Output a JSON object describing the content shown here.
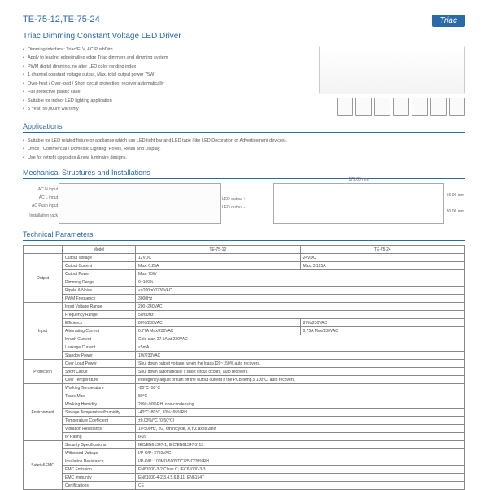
{
  "header": {
    "models": "TE-75-12,TE-75-24",
    "badge": "Triac",
    "title": "Triac Dimming Constant Voltage LED Driver"
  },
  "features": [
    "Dimming interface: Triac/ELV, AC PushDim",
    "Apply to leading edge/trailing edge Triac dimmers and dimming system",
    "PWM digital dimming, no alter LED color rending index",
    "1 channel constant voltage output, Max. total output power 75W",
    "Over-heat / Over-load / Short circuit protection, recover automatically",
    "Full protective plastic case",
    "Suitable for indoor LED lighting application",
    "5 Year, 50,000hr warranty"
  ],
  "sections": {
    "apps": "Applications",
    "mech": "Mechanical Structures and Installations",
    "tech": "Technical Parameters"
  },
  "applications": [
    "Suitable for LED related fixture or appliance which use LED light bar and LED tape (like LED Decoration or Advertisement devices).",
    "Office / Commercial / Domestic Lighting, Hotels, Retail and Display.",
    "Use for retrofit upgrades & new luminaire designs."
  ],
  "mech": {
    "left_labels": [
      "AC N input",
      "AC L input",
      "AC Push input",
      "Installation rack"
    ],
    "right_labels": [
      "LED output +",
      "LED output -"
    ],
    "dim_w": "179.00 mm",
    "dim_h": "56.00 mm",
    "dim_d": "30.00 mm"
  },
  "table": {
    "head": [
      "Model",
      "TE-75-12",
      "TE-75-24"
    ],
    "groups": [
      {
        "name": "Output",
        "rows": [
          [
            "Output Voltage",
            "12VDC",
            "24VDC"
          ],
          [
            "Output Current",
            "Max. 6.25A",
            "Max. 3.125A"
          ],
          [
            "Output Power",
            "Max. 75W",
            ""
          ],
          [
            "Dimming Range",
            "0~100%",
            ""
          ],
          [
            "Ripple & Noise",
            "<=200mV/230VAC",
            ""
          ],
          [
            "PWM Frequency",
            "3000Hz",
            ""
          ]
        ]
      },
      {
        "name": "Input",
        "rows": [
          [
            "Input Voltage Range",
            "200~240VAC",
            ""
          ],
          [
            "Frequency Range",
            "50/60Hz",
            ""
          ],
          [
            "Efficiency",
            "86%/230VAC",
            "87%/230VAC"
          ],
          [
            "Alternating Current",
            "0.77A Max/230VAC",
            "0.75A Max/230VAC"
          ],
          [
            "Inrush Current",
            "Cold start 27.5A at 230VAC",
            ""
          ],
          [
            "Leakage Current",
            "<5mA",
            ""
          ],
          [
            "Standby Power",
            "1W/230VAC",
            ""
          ]
        ]
      },
      {
        "name": "Protection",
        "rows": [
          [
            "Over Load Power",
            "Shut down output voltage, when the load≥120~150%,auto recovers.",
            ""
          ],
          [
            "Short Circuit",
            "Shut down automatically if short circuit occurs, auto recovers.",
            ""
          ],
          [
            "Over Temperature",
            "Intelligently adjust or turn off the output current if the PCB temp.≥ 100°C, auto recovers.",
            ""
          ]
        ]
      },
      {
        "name": "Environment",
        "rows": [
          [
            "Working Temperature",
            "-20°C~50°C",
            ""
          ],
          [
            "Tcase Max",
            "80°C",
            ""
          ],
          [
            "Working Humidity",
            "20%~90%RH, non-condensing",
            ""
          ],
          [
            "Storage Temperature/Humidity",
            "-40°C~80°C, 10%~95%RH",
            ""
          ],
          [
            "Temperature Coefficient",
            "±0.03%/°C (0-50°C)",
            ""
          ],
          [
            "Vibration Resistance",
            "10-500Hz, 2G, 6min/cycle, X,Y,Z axes/2min",
            ""
          ],
          [
            "IP Rating",
            "IP20",
            ""
          ]
        ]
      },
      {
        "name": "Safety&EMC",
        "rows": [
          [
            "Security Specifications",
            "IEC/EN61347-1, IEC/EN61347-2-13",
            ""
          ],
          [
            "Withstand Voltage",
            "I/P-O/P: 3750VAC",
            ""
          ],
          [
            "Insulation Resistance",
            "I/P-O/P: 100MΩ/500VDC/25°C/70%RH",
            ""
          ],
          [
            "EMC Emission",
            "EN61000-3-2 Class C; IEC61000-3-3",
            ""
          ],
          [
            "EMC Immunity",
            "EN61000-4-2,3,4,5,6,8,11, EN61547",
            ""
          ],
          [
            "Certifications",
            "CE",
            ""
          ]
        ]
      }
    ]
  }
}
